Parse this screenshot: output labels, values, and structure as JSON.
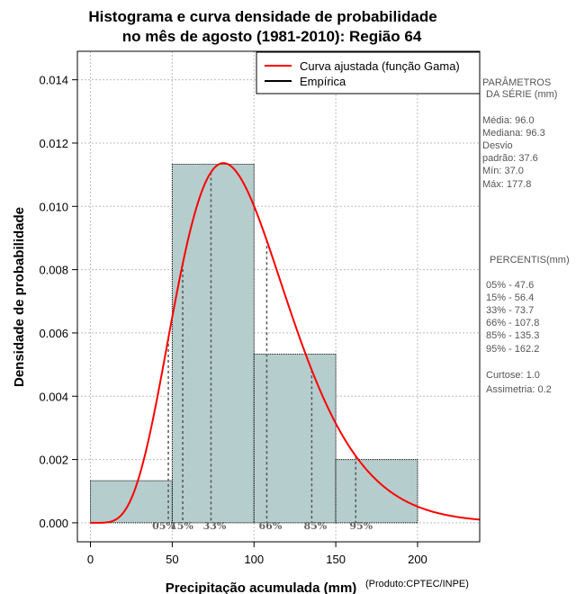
{
  "chart_data": {
    "type": "bar",
    "title": [
      "Histograma e curva densidade de probabilidade",
      "no mês de agosto (1981-2010): Região 64"
    ],
    "xlabel": "Precipitação acumulada (mm)",
    "ylabel": "Densidade de probabilidade",
    "credit": "(Produto:CPTEC/INPE)",
    "xlim": [
      -8,
      238
    ],
    "ylim": [
      -0.0006,
      0.0149
    ],
    "x_ticks": [
      0,
      50,
      100,
      150,
      200
    ],
    "y_ticks": [
      0.0,
      0.002,
      0.004,
      0.006,
      0.008,
      0.01,
      0.012,
      0.014
    ],
    "y_tick_labels": [
      "0.000",
      "0.002",
      "0.004",
      "0.006",
      "0.008",
      "0.010",
      "0.012",
      "0.014"
    ],
    "bins": [
      {
        "from": 0,
        "to": 50,
        "density": 0.00133
      },
      {
        "from": 50,
        "to": 100,
        "density": 0.01133
      },
      {
        "from": 100,
        "to": 150,
        "density": 0.00533
      },
      {
        "from": 150,
        "to": 200,
        "density": 0.002
      }
    ],
    "gamma": {
      "shape": 6.53,
      "scale": 14.7
    },
    "legend": {
      "position": "top-right",
      "entries": [
        {
          "label": "Curva ajustada (função Gama)",
          "color": "#ff0000"
        },
        {
          "label": "Empírica",
          "color": "#000000"
        }
      ]
    },
    "percentile_markers": [
      {
        "label": "05%",
        "value": 47.6
      },
      {
        "label": "15%",
        "value": 56.4
      },
      {
        "label": "33%",
        "value": 73.7
      },
      {
        "label": "66%",
        "value": 107.8
      },
      {
        "label": "85%",
        "value": 135.3
      },
      {
        "label": "95%",
        "value": 162.2
      }
    ],
    "colors": {
      "bar_fill": "#b5cdcd",
      "curve": "#ff0000",
      "grid": "#bdbdbd",
      "markers": "#555555"
    }
  },
  "side_panel": {
    "params_title": [
      "PARÂMETROS",
      "DA SÉRIE (mm)"
    ],
    "params": [
      "Média:  96.0",
      "Mediana:  96.3",
      "Desvio",
      "padrão:  37.6",
      "Mín:  37.0",
      "Máx:  177.8"
    ],
    "percentis_title": "PERCENTIS(mm)",
    "percentis": [
      "05% -  47.6",
      "15% -  56.4",
      "33% -  73.7",
      "66% -  107.8",
      "85% -  135.3",
      "95% -  162.2"
    ],
    "extra": [
      "Curtose:  1.0",
      "Assimetria:  0.2"
    ]
  }
}
